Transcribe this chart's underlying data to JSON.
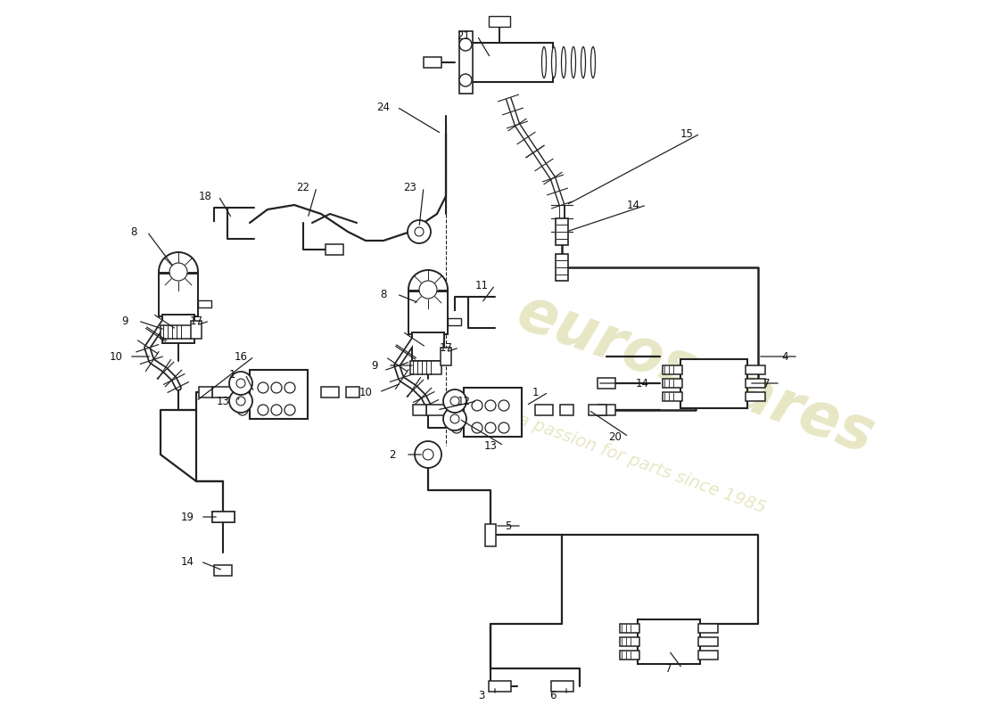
{
  "bg_color": "#ffffff",
  "line_color": "#222222",
  "label_color": "#111111",
  "watermark1": "eurospares",
  "watermark2": "a passion for parts since 1985",
  "wm_color": "#d8d8a0",
  "fig_w": 11.0,
  "fig_h": 8.0,
  "dpi": 100
}
